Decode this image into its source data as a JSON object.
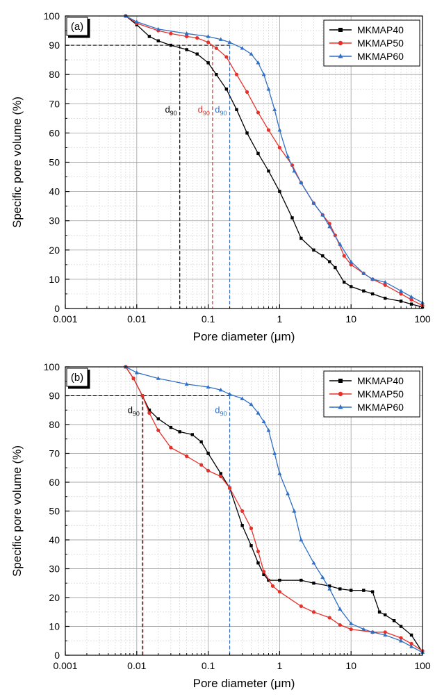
{
  "chart_data": [
    {
      "type": "line",
      "panel_label": "(a)",
      "xlabel": "Pore diameter (μm)",
      "ylabel": "Specific pore volume (%)",
      "x_scale": "log",
      "xlim": [
        0.001,
        100
      ],
      "ylim": [
        0,
        100
      ],
      "x_ticks": [
        0.001,
        0.01,
        0.1,
        1,
        10,
        100
      ],
      "x_tick_labels": [
        "0.001",
        "0.01",
        "0.1",
        "1",
        "10",
        "100"
      ],
      "y_ticks": [
        0,
        10,
        20,
        30,
        40,
        50,
        60,
        70,
        80,
        90,
        100
      ],
      "y_tick_labels": [
        "0",
        "10",
        "20",
        "30",
        "40",
        "50",
        "60",
        "70",
        "80",
        "90",
        "100"
      ],
      "grid": true,
      "legend_position": "top-right",
      "reference_line": {
        "y": 90
      },
      "d90_markers": [
        {
          "series": "MKMAP40",
          "x": 0.04,
          "color": "#000000",
          "label_main": "d",
          "label_sub": "90"
        },
        {
          "series": "MKMAP50",
          "x": 0.115,
          "color": "#e8302a",
          "label_main": "d",
          "label_sub": "90"
        },
        {
          "series": "MKMAP60",
          "x": 0.2,
          "color": "#2f6fc4",
          "label_main": "d",
          "label_sub": "90"
        }
      ],
      "series": [
        {
          "name": "MKMAP40",
          "color": "#000000",
          "marker": "square",
          "points": [
            [
              0.007,
              100
            ],
            [
              0.01,
              97
            ],
            [
              0.015,
              93
            ],
            [
              0.02,
              91.5
            ],
            [
              0.03,
              90
            ],
            [
              0.05,
              88.5
            ],
            [
              0.07,
              87
            ],
            [
              0.1,
              84
            ],
            [
              0.13,
              80
            ],
            [
              0.18,
              75
            ],
            [
              0.25,
              68
            ],
            [
              0.35,
              60
            ],
            [
              0.5,
              53
            ],
            [
              0.7,
              47
            ],
            [
              1,
              40
            ],
            [
              1.5,
              31
            ],
            [
              2,
              24
            ],
            [
              3,
              20
            ],
            [
              4,
              18
            ],
            [
              5,
              16
            ],
            [
              6,
              14
            ],
            [
              8,
              9
            ],
            [
              10,
              7.5
            ],
            [
              15,
              6
            ],
            [
              20,
              5
            ],
            [
              30,
              3.5
            ],
            [
              50,
              2.5
            ],
            [
              70,
              1.5
            ],
            [
              100,
              0.5
            ]
          ]
        },
        {
          "name": "MKMAP50",
          "color": "#e8302a",
          "marker": "circle",
          "points": [
            [
              0.007,
              100
            ],
            [
              0.01,
              97.5
            ],
            [
              0.02,
              95
            ],
            [
              0.03,
              94
            ],
            [
              0.05,
              93
            ],
            [
              0.07,
              92.5
            ],
            [
              0.1,
              91
            ],
            [
              0.13,
              89
            ],
            [
              0.18,
              86
            ],
            [
              0.25,
              80
            ],
            [
              0.35,
              74
            ],
            [
              0.5,
              67
            ],
            [
              0.7,
              61
            ],
            [
              1,
              55
            ],
            [
              1.5,
              49
            ],
            [
              2,
              43
            ],
            [
              3,
              36
            ],
            [
              4,
              32
            ],
            [
              5,
              29
            ],
            [
              6,
              25
            ],
            [
              8,
              18
            ],
            [
              10,
              15
            ],
            [
              15,
              12
            ],
            [
              20,
              10
            ],
            [
              30,
              8
            ],
            [
              50,
              5
            ],
            [
              70,
              3
            ],
            [
              100,
              1
            ]
          ]
        },
        {
          "name": "MKMAP60",
          "color": "#2f6fc4",
          "marker": "triangle",
          "points": [
            [
              0.007,
              100
            ],
            [
              0.01,
              98
            ],
            [
              0.02,
              95.5
            ],
            [
              0.05,
              94
            ],
            [
              0.1,
              93
            ],
            [
              0.15,
              92
            ],
            [
              0.2,
              91
            ],
            [
              0.3,
              89
            ],
            [
              0.4,
              87
            ],
            [
              0.5,
              84
            ],
            [
              0.6,
              80
            ],
            [
              0.7,
              75
            ],
            [
              0.85,
              68
            ],
            [
              1,
              61
            ],
            [
              1.3,
              52
            ],
            [
              1.6,
              47
            ],
            [
              2,
              43
            ],
            [
              3,
              36
            ],
            [
              4,
              32
            ],
            [
              5,
              28
            ],
            [
              7,
              22
            ],
            [
              10,
              16
            ],
            [
              15,
              12
            ],
            [
              20,
              10
            ],
            [
              30,
              9
            ],
            [
              50,
              6
            ],
            [
              70,
              4
            ],
            [
              100,
              2
            ]
          ]
        }
      ]
    },
    {
      "type": "line",
      "panel_label": "(b)",
      "xlabel": "Pore diameter (μm)",
      "ylabel": "Specific pore volume (%)",
      "x_scale": "log",
      "xlim": [
        0.001,
        100
      ],
      "ylim": [
        0,
        100
      ],
      "x_ticks": [
        0.001,
        0.01,
        0.1,
        1,
        10,
        100
      ],
      "x_tick_labels": [
        "0.001",
        "0.01",
        "0.1",
        "1",
        "10",
        "100"
      ],
      "y_ticks": [
        0,
        10,
        20,
        30,
        40,
        50,
        60,
        70,
        80,
        90,
        100
      ],
      "y_tick_labels": [
        "0",
        "10",
        "20",
        "30",
        "40",
        "50",
        "60",
        "70",
        "80",
        "90",
        "100"
      ],
      "grid": true,
      "legend_position": "top-right",
      "reference_line": {
        "y": 90
      },
      "d90_markers": [
        {
          "series": "MKMAP40",
          "x": 0.012,
          "color": "#000000",
          "label_main": "d",
          "label_sub": "90"
        },
        {
          "series": "MKMAP50",
          "x": 0.0122,
          "color": "#e8302a",
          "label_main": "",
          "label_sub": ""
        },
        {
          "series": "MKMAP60",
          "x": 0.2,
          "color": "#2f6fc4",
          "label_main": "d",
          "label_sub": "90"
        }
      ],
      "series": [
        {
          "name": "MKMAP40",
          "color": "#000000",
          "marker": "square",
          "points": [
            [
              0.007,
              100
            ],
            [
              0.009,
              96
            ],
            [
              0.012,
              90
            ],
            [
              0.015,
              85
            ],
            [
              0.02,
              82
            ],
            [
              0.03,
              79
            ],
            [
              0.04,
              77.5
            ],
            [
              0.06,
              76.5
            ],
            [
              0.08,
              74
            ],
            [
              0.1,
              70
            ],
            [
              0.15,
              63
            ],
            [
              0.2,
              58
            ],
            [
              0.3,
              45
            ],
            [
              0.4,
              38
            ],
            [
              0.5,
              32
            ],
            [
              0.6,
              28
            ],
            [
              0.7,
              26
            ],
            [
              1,
              26
            ],
            [
              2,
              26
            ],
            [
              3,
              25
            ],
            [
              5,
              24
            ],
            [
              7,
              23
            ],
            [
              10,
              22.5
            ],
            [
              15,
              22.5
            ],
            [
              20,
              22
            ],
            [
              25,
              15
            ],
            [
              30,
              14
            ],
            [
              40,
              12
            ],
            [
              50,
              10
            ],
            [
              70,
              7
            ],
            [
              100,
              1
            ]
          ]
        },
        {
          "name": "MKMAP50",
          "color": "#e8302a",
          "marker": "circle",
          "points": [
            [
              0.007,
              100
            ],
            [
              0.009,
              96
            ],
            [
              0.012,
              90
            ],
            [
              0.015,
              84
            ],
            [
              0.02,
              78
            ],
            [
              0.03,
              72
            ],
            [
              0.05,
              69
            ],
            [
              0.08,
              66
            ],
            [
              0.1,
              64
            ],
            [
              0.15,
              62
            ],
            [
              0.2,
              58
            ],
            [
              0.3,
              50
            ],
            [
              0.4,
              44
            ],
            [
              0.5,
              36
            ],
            [
              0.6,
              29
            ],
            [
              0.8,
              24
            ],
            [
              1,
              22
            ],
            [
              2,
              17
            ],
            [
              3,
              15
            ],
            [
              5,
              13
            ],
            [
              7,
              10.5
            ],
            [
              10,
              9
            ],
            [
              20,
              8
            ],
            [
              30,
              8
            ],
            [
              50,
              6
            ],
            [
              70,
              4
            ],
            [
              100,
              1.5
            ]
          ]
        },
        {
          "name": "MKMAP60",
          "color": "#2f6fc4",
          "marker": "triangle",
          "points": [
            [
              0.007,
              100
            ],
            [
              0.01,
              98
            ],
            [
              0.02,
              96
            ],
            [
              0.05,
              94
            ],
            [
              0.1,
              93
            ],
            [
              0.15,
              92
            ],
            [
              0.2,
              90.5
            ],
            [
              0.3,
              89
            ],
            [
              0.4,
              87
            ],
            [
              0.5,
              84
            ],
            [
              0.6,
              81
            ],
            [
              0.7,
              78
            ],
            [
              0.85,
              70
            ],
            [
              1,
              63
            ],
            [
              1.3,
              56
            ],
            [
              1.6,
              50
            ],
            [
              2,
              40
            ],
            [
              3,
              32
            ],
            [
              4,
              27
            ],
            [
              5,
              23
            ],
            [
              7,
              16
            ],
            [
              10,
              11
            ],
            [
              15,
              9
            ],
            [
              20,
              8
            ],
            [
              30,
              7
            ],
            [
              50,
              5
            ],
            [
              70,
              3
            ],
            [
              100,
              1
            ]
          ]
        }
      ]
    }
  ]
}
